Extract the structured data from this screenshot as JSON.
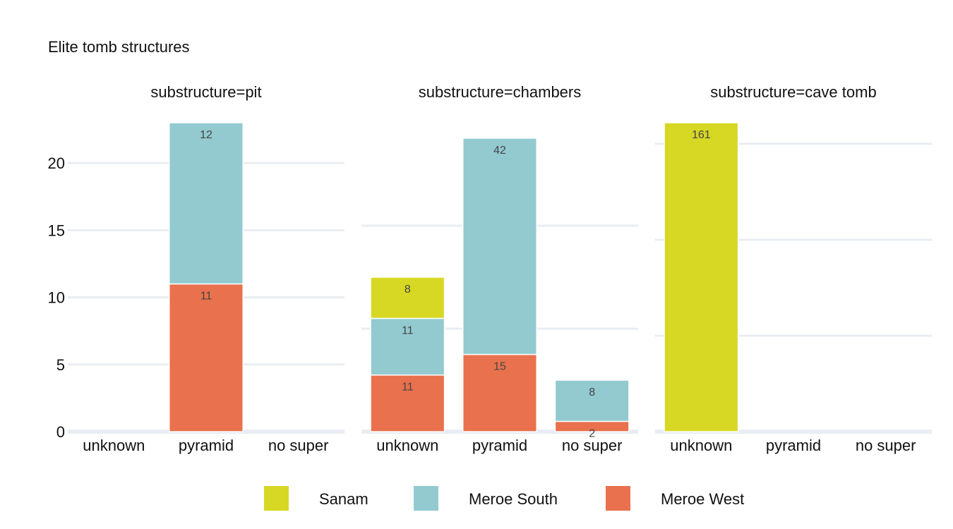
{
  "chart_data": {
    "type": "bar",
    "stacked": true,
    "title": "Elite tomb structures",
    "categories": [
      "unknown",
      "pyramid",
      "no super"
    ],
    "facets": [
      {
        "title": "substructure=pit",
        "ylim": [
          0,
          23
        ],
        "yticks": [
          0,
          5,
          10,
          15,
          20
        ],
        "series": [
          {
            "name": "Meroe West",
            "values": [
              0,
              11,
              0
            ]
          },
          {
            "name": "Meroe South",
            "values": [
              0,
              12,
              0
            ]
          },
          {
            "name": "Sanam",
            "values": [
              0,
              0,
              0
            ]
          }
        ]
      },
      {
        "title": "substructure=chambers",
        "ylim": [
          0,
          60
        ],
        "yticks": [
          0,
          20,
          40
        ],
        "series": [
          {
            "name": "Meroe West",
            "values": [
              11,
              15,
              2
            ]
          },
          {
            "name": "Meroe South",
            "values": [
              11,
              42,
              8
            ]
          },
          {
            "name": "Sanam",
            "values": [
              8,
              0,
              0
            ]
          }
        ]
      },
      {
        "title": "substructure=cave tomb",
        "ylim": [
          0,
          161
        ],
        "yticks": [
          0,
          50,
          100,
          150
        ],
        "series": [
          {
            "name": "Meroe West",
            "values": [
              0,
              0,
              0
            ]
          },
          {
            "name": "Meroe South",
            "values": [
              0,
              0,
              0
            ]
          },
          {
            "name": "Sanam",
            "values": [
              161,
              0,
              0
            ]
          }
        ]
      }
    ],
    "legend": {
      "placement": "bottom",
      "items": [
        {
          "name": "Sanam",
          "color": "#d6d824"
        },
        {
          "name": "Meroe South",
          "color": "#92cad0"
        },
        {
          "name": "Meroe West",
          "color": "#e9714d"
        }
      ]
    },
    "grid": true,
    "y_tick_labels_shown_on": "first facet only"
  }
}
